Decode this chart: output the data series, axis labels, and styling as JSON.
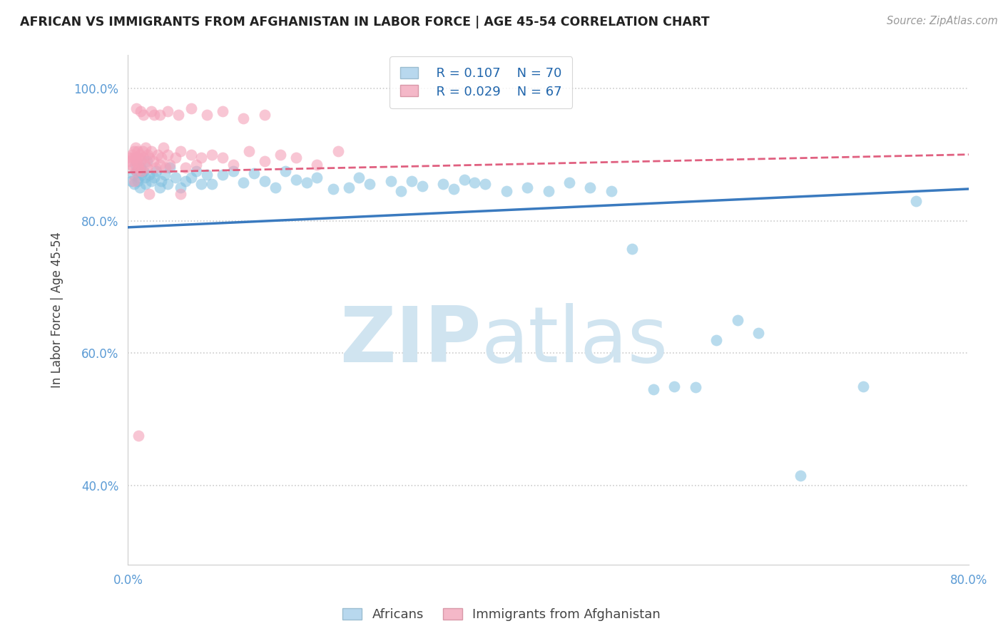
{
  "title": "AFRICAN VS IMMIGRANTS FROM AFGHANISTAN IN LABOR FORCE | AGE 45-54 CORRELATION CHART",
  "source": "Source: ZipAtlas.com",
  "ylabel": "In Labor Force | Age 45-54",
  "xlim": [
    0.0,
    0.8
  ],
  "ylim": [
    0.28,
    1.05
  ],
  "xticks": [
    0.0,
    0.1,
    0.2,
    0.3,
    0.4,
    0.5,
    0.6,
    0.7,
    0.8
  ],
  "xticklabels": [
    "0.0%",
    "",
    "",
    "",
    "",
    "",
    "",
    "",
    "80.0%"
  ],
  "yticks": [
    0.4,
    0.6,
    0.8,
    1.0
  ],
  "yticklabels": [
    "40.0%",
    "60.0%",
    "80.0%",
    "100.0%"
  ],
  "legend_label1": "Africans",
  "legend_label2": "Immigrants from Afghanistan",
  "blue_color": "#7fbfdf",
  "pink_color": "#f4a0b8",
  "blue_line_color": "#3a7abf",
  "pink_line_color": "#e06080",
  "watermark_zip": "ZIP",
  "watermark_atlas": "atlas",
  "blue_line_x0": 0.0,
  "blue_line_y0": 0.79,
  "blue_line_x1": 0.8,
  "blue_line_y1": 0.848,
  "pink_line_x0": 0.0,
  "pink_line_y0": 0.873,
  "pink_line_x1": 0.8,
  "pink_line_y1": 0.9,
  "blue_x": [
    0.003,
    0.005,
    0.006,
    0.007,
    0.008,
    0.009,
    0.01,
    0.011,
    0.012,
    0.013,
    0.015,
    0.016,
    0.017,
    0.018,
    0.02,
    0.022,
    0.025,
    0.027,
    0.03,
    0.032,
    0.035,
    0.038,
    0.04,
    0.045,
    0.05,
    0.055,
    0.06,
    0.065,
    0.07,
    0.075,
    0.08,
    0.09,
    0.1,
    0.11,
    0.12,
    0.13,
    0.14,
    0.15,
    0.16,
    0.17,
    0.18,
    0.195,
    0.21,
    0.22,
    0.23,
    0.25,
    0.26,
    0.27,
    0.28,
    0.3,
    0.31,
    0.32,
    0.33,
    0.34,
    0.36,
    0.38,
    0.4,
    0.42,
    0.44,
    0.46,
    0.48,
    0.5,
    0.52,
    0.54,
    0.56,
    0.58,
    0.6,
    0.64,
    0.7,
    0.75
  ],
  "blue_y": [
    0.86,
    0.87,
    0.855,
    0.885,
    0.875,
    0.86,
    0.865,
    0.85,
    0.88,
    0.87,
    0.875,
    0.865,
    0.855,
    0.89,
    0.87,
    0.86,
    0.865,
    0.875,
    0.85,
    0.86,
    0.87,
    0.855,
    0.88,
    0.865,
    0.85,
    0.86,
    0.865,
    0.875,
    0.855,
    0.87,
    0.855,
    0.87,
    0.875,
    0.858,
    0.872,
    0.86,
    0.85,
    0.875,
    0.862,
    0.858,
    0.865,
    0.848,
    0.85,
    0.865,
    0.855,
    0.86,
    0.845,
    0.86,
    0.852,
    0.855,
    0.848,
    0.862,
    0.858,
    0.855,
    0.845,
    0.85,
    0.845,
    0.858,
    0.85,
    0.845,
    0.758,
    0.545,
    0.55,
    0.548,
    0.62,
    0.65,
    0.63,
    0.415,
    0.55,
    0.83
  ],
  "pink_x": [
    0.001,
    0.002,
    0.003,
    0.004,
    0.005,
    0.005,
    0.006,
    0.007,
    0.007,
    0.008,
    0.008,
    0.009,
    0.009,
    0.01,
    0.01,
    0.011,
    0.012,
    0.013,
    0.014,
    0.015,
    0.016,
    0.017,
    0.018,
    0.019,
    0.02,
    0.022,
    0.024,
    0.026,
    0.028,
    0.03,
    0.032,
    0.034,
    0.036,
    0.038,
    0.04,
    0.045,
    0.05,
    0.055,
    0.06,
    0.065,
    0.07,
    0.08,
    0.09,
    0.1,
    0.115,
    0.13,
    0.145,
    0.16,
    0.18,
    0.2,
    0.025,
    0.012,
    0.008,
    0.015,
    0.022,
    0.03,
    0.038,
    0.048,
    0.06,
    0.075,
    0.09,
    0.11,
    0.13,
    0.05,
    0.02,
    0.01,
    0.006
  ],
  "pink_y": [
    0.89,
    0.895,
    0.885,
    0.9,
    0.895,
    0.88,
    0.905,
    0.895,
    0.91,
    0.89,
    0.875,
    0.905,
    0.885,
    0.895,
    0.88,
    0.9,
    0.89,
    0.875,
    0.905,
    0.895,
    0.885,
    0.91,
    0.88,
    0.9,
    0.895,
    0.905,
    0.89,
    0.88,
    0.9,
    0.885,
    0.895,
    0.91,
    0.88,
    0.9,
    0.885,
    0.895,
    0.905,
    0.88,
    0.9,
    0.885,
    0.895,
    0.9,
    0.895,
    0.885,
    0.905,
    0.89,
    0.9,
    0.895,
    0.885,
    0.905,
    0.96,
    0.965,
    0.97,
    0.96,
    0.965,
    0.96,
    0.965,
    0.96,
    0.97,
    0.96,
    0.965,
    0.955,
    0.96,
    0.84,
    0.84,
    0.475,
    0.86
  ]
}
